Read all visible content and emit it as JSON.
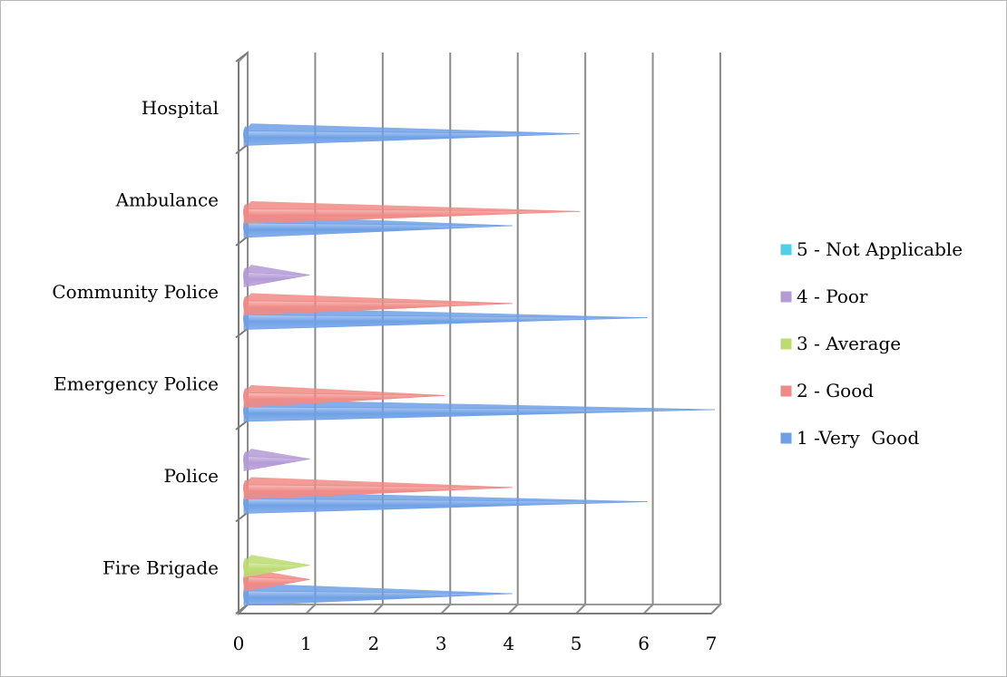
{
  "chart_data": {
    "type": "bar",
    "orientation": "horizontal",
    "style": "3d-cone",
    "categories": [
      "Fire Brigade",
      "Police",
      "Emergency Police",
      "Community Police",
      "Ambulance",
      "Hospital"
    ],
    "series": [
      {
        "name": "1 -Very  Good",
        "color": "#6fa0e6",
        "values": [
          4,
          6,
          7,
          6,
          4,
          5
        ]
      },
      {
        "name": "2 - Good",
        "color": "#f08a86",
        "values": [
          1,
          4,
          3,
          4,
          5,
          0
        ]
      },
      {
        "name": "3 - Average",
        "color": "#bcdc72",
        "values": [
          1,
          0,
          0,
          0,
          0,
          0
        ]
      },
      {
        "name": "4 - Poor",
        "color": "#b49ad6",
        "values": [
          0,
          1,
          0,
          1,
          0,
          0
        ]
      },
      {
        "name": "5 - Not Applicable",
        "color": "#4fd0e8",
        "values": [
          0,
          0,
          0,
          0,
          0,
          0
        ]
      }
    ],
    "xticks": [
      "0",
      "1",
      "2",
      "3",
      "4",
      "5",
      "6",
      "7"
    ],
    "xlim": [
      0,
      7
    ],
    "grid": true,
    "legend_position": "right"
  }
}
